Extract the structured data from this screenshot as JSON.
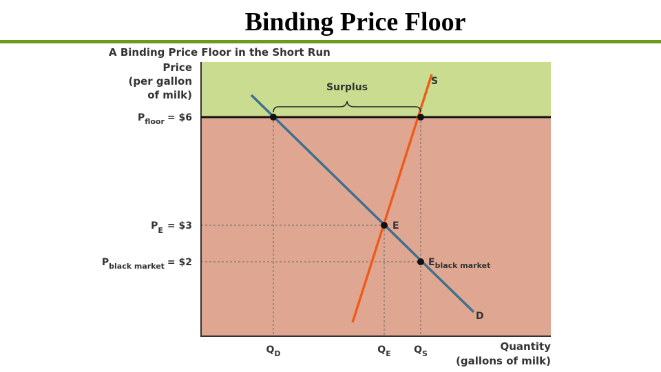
{
  "title": "Binding Price Floor",
  "figure": {
    "caption": "A Binding Price Floor in the Short Run",
    "y_axis_label": [
      "Price",
      "(per gallon",
      "of milk)"
    ],
    "x_axis_label": [
      "Quantity",
      "(gallons of milk)"
    ],
    "price_labels": [
      {
        "main": "P",
        "sub": "floor",
        "value": "= $6"
      },
      {
        "main": "P",
        "sub": "E",
        "value": "= $3"
      },
      {
        "main": "P",
        "sub": "black market",
        "value": "= $2"
      }
    ],
    "quantity_labels": [
      {
        "main": "Q",
        "sub": "D"
      },
      {
        "main": "Q",
        "sub": "E"
      },
      {
        "main": "Q",
        "sub": "S"
      }
    ],
    "region_label": "Surplus",
    "curves": {
      "supply": "S",
      "demand": "D"
    },
    "points": [
      {
        "main": "E"
      },
      {
        "main": "E",
        "sub": "black market"
      }
    ]
  }
}
